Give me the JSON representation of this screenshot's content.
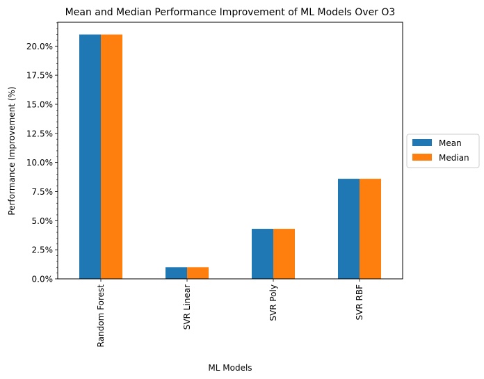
{
  "chart_data": {
    "type": "bar",
    "title": "Mean and Median Performance Improvement of ML Models Over O3",
    "xlabel": "ML Models",
    "ylabel": "Performance Improvement (%)",
    "categories": [
      "Random Forest",
      "SVR Linear",
      "SVR Poly",
      "SVR RBF"
    ],
    "series": [
      {
        "name": "Mean",
        "values": [
          21.0,
          1.0,
          4.3,
          8.6
        ],
        "color": "#1f77b4"
      },
      {
        "name": "Median",
        "values": [
          21.0,
          1.0,
          4.3,
          8.6
        ],
        "color": "#ff7f0e"
      }
    ],
    "ylim": [
      0,
      22.05
    ],
    "yticks": [
      0,
      2.5,
      5.0,
      7.5,
      10.0,
      12.5,
      15.0,
      17.5,
      20.0
    ],
    "ytick_labels": [
      "0.0%",
      "2.5%",
      "5.0%",
      "7.5%",
      "10.0%",
      "12.5%",
      "15.0%",
      "17.5%",
      "20.0%"
    ],
    "y_minor_tick_step": 0.5,
    "legend_position": "right, outside plot",
    "grid": false
  }
}
